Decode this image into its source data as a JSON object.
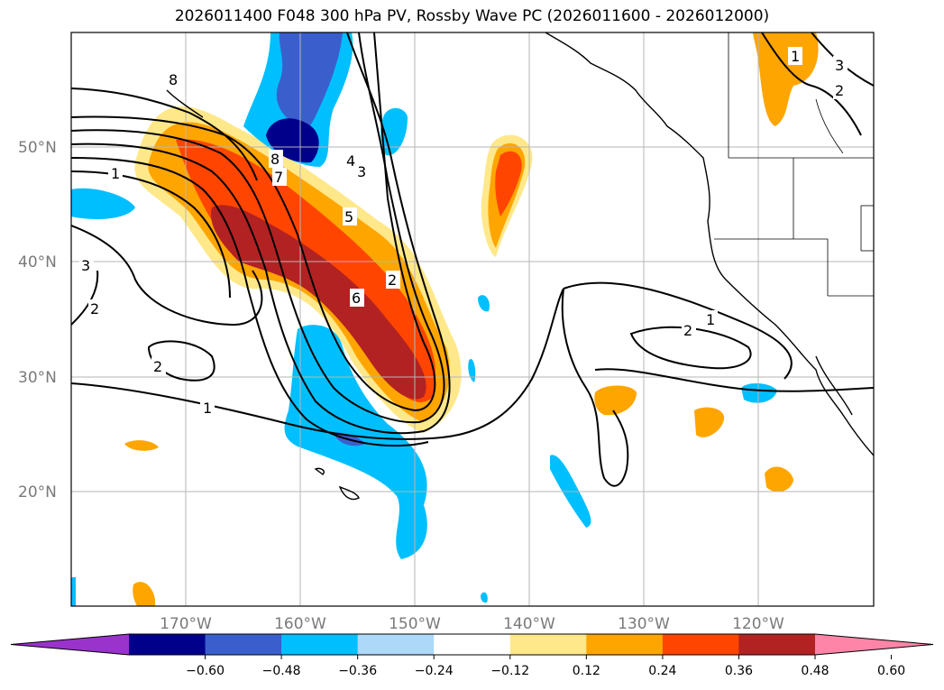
{
  "title": "2026011400 F048 300 hPa PV, Rossby Wave PC (2026011600 - 2026012000)",
  "lat_labels": [
    "50°N",
    "40°N",
    "30°N",
    "20°N"
  ],
  "lon_labels": [
    "170°W",
    "160°W",
    "150°W",
    "140°W",
    "130°W",
    "120°W"
  ],
  "colorbar": {
    "tick_labels": [
      "−0.60",
      "−0.48",
      "−0.36",
      "−0.24",
      "−0.12",
      "0.12",
      "0.24",
      "0.36",
      "0.48",
      "0.60"
    ],
    "colors": [
      "#9933cc",
      "#00008b",
      "#3a5fcd",
      "#00bfff",
      "#add8f7",
      "#ffffff",
      "#ffe88a",
      "#ffa500",
      "#ff4500",
      "#b22222",
      "#ff85a8"
    ]
  },
  "contour_labels": [
    "1",
    "2",
    "3",
    "4",
    "5",
    "6",
    "7",
    "8"
  ]
}
